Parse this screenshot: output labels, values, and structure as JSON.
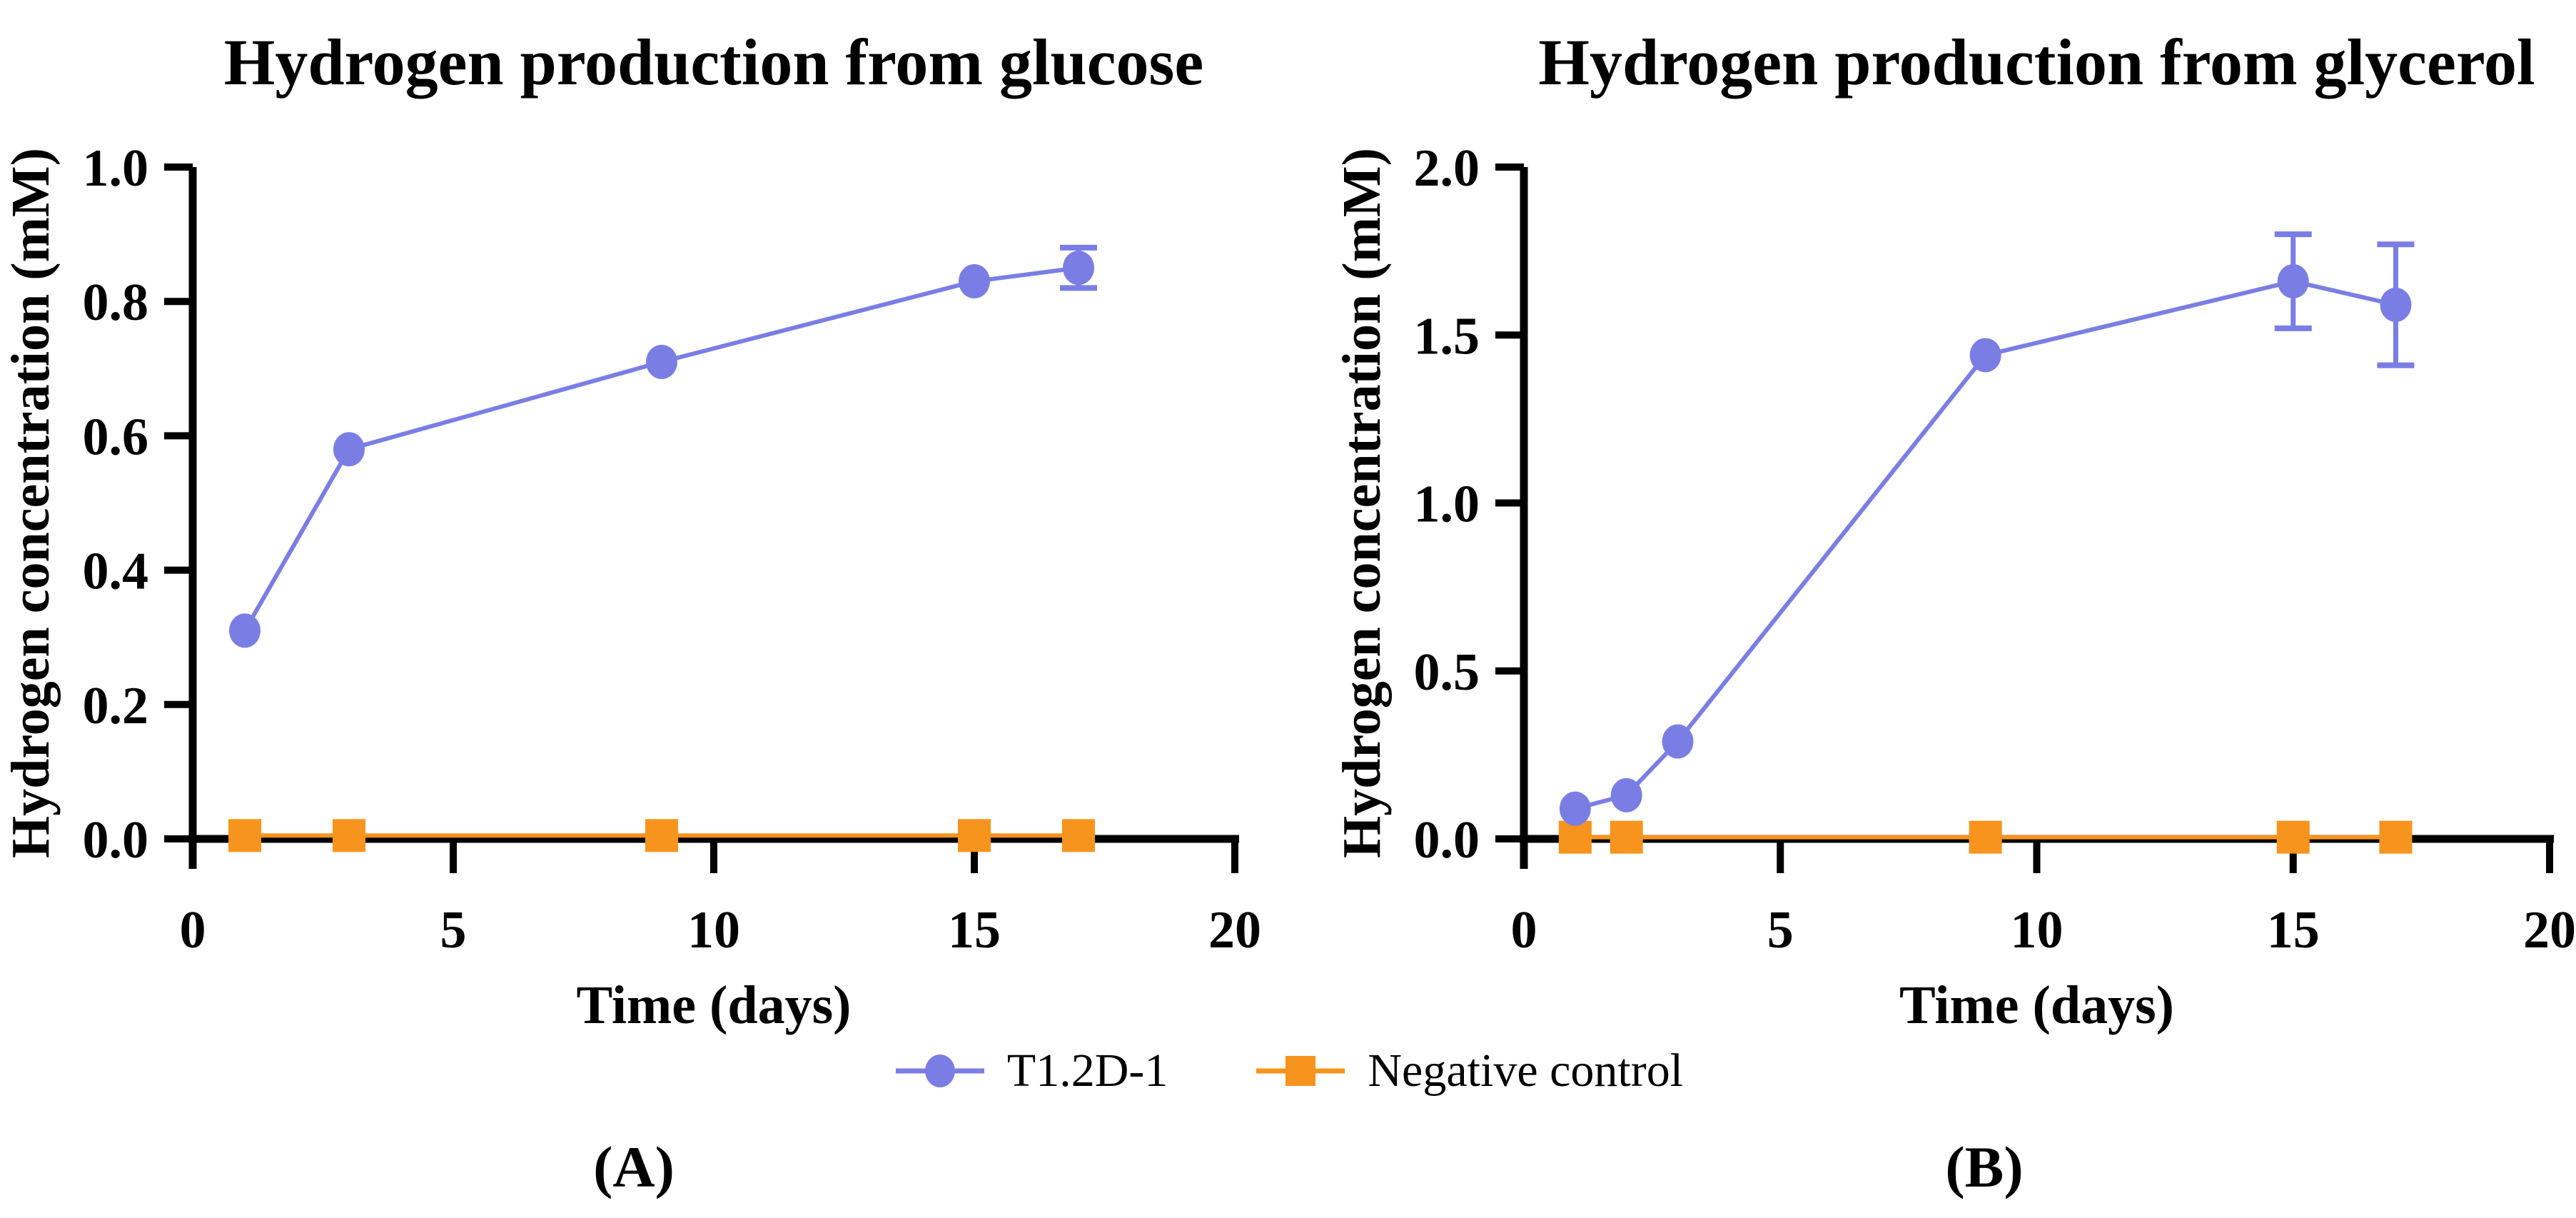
{
  "figure": {
    "background": "#ffffff",
    "axis_color": "#000000",
    "panel_labels": [
      "(A)",
      "(B)"
    ],
    "legend": [
      {
        "label": "T1.2D-1",
        "marker": "circle",
        "color": "#7a7ee4"
      },
      {
        "label": "Negative control",
        "marker": "square",
        "color": "#f7941d"
      }
    ]
  },
  "chart_data": [
    {
      "type": "line",
      "panel": "A",
      "title": "Hydrogen production from glucose",
      "xlabel": "Time (days)",
      "ylabel": "Hydrogen concentration (mM)",
      "xlim": [
        0,
        20
      ],
      "ylim": [
        0,
        1.0
      ],
      "xticks": [
        "0",
        "5",
        "10",
        "15",
        "20"
      ],
      "yticks": [
        "0.0",
        "0.2",
        "0.4",
        "0.6",
        "0.8",
        "1.0"
      ],
      "grid": false,
      "legend_position": "bottom-center",
      "series": [
        {
          "name": "T1.2D-1",
          "marker": "circle",
          "color": "#7a7ee4",
          "x": [
            1,
            3,
            9,
            15,
            17
          ],
          "y": [
            0.31,
            0.58,
            0.71,
            0.83,
            0.85
          ],
          "yerr": [
            0,
            0,
            0,
            0,
            0.03
          ]
        },
        {
          "name": "Negative control",
          "marker": "square",
          "color": "#f7941d",
          "x": [
            1,
            3,
            9,
            15,
            17
          ],
          "y": [
            0.005,
            0.005,
            0.005,
            0.005,
            0.005
          ],
          "yerr": [
            0,
            0,
            0,
            0,
            0
          ]
        }
      ]
    },
    {
      "type": "line",
      "panel": "B",
      "title": "Hydrogen production from glycerol",
      "xlabel": "Time (days)",
      "ylabel": "Hydrogen concentration (mM)",
      "xlim": [
        0,
        20
      ],
      "ylim": [
        0,
        2.0
      ],
      "xticks": [
        "0",
        "5",
        "10",
        "15",
        "20"
      ],
      "yticks": [
        "0.0",
        "0.5",
        "1.0",
        "1.5",
        "2.0"
      ],
      "grid": false,
      "legend_position": "bottom-center",
      "series": [
        {
          "name": "T1.2D-1",
          "marker": "circle",
          "color": "#7a7ee4",
          "x": [
            1,
            2,
            3,
            9,
            15,
            17
          ],
          "y": [
            0.09,
            0.13,
            0.29,
            1.44,
            1.66,
            1.59
          ],
          "yerr": [
            0,
            0,
            0,
            0,
            0.14,
            0.18
          ]
        },
        {
          "name": "Negative control",
          "marker": "square",
          "color": "#f7941d",
          "x": [
            1,
            2,
            9,
            15,
            17
          ],
          "y": [
            0.005,
            0.005,
            0.005,
            0.005,
            0.005
          ],
          "yerr": [
            0,
            0,
            0,
            0,
            0
          ]
        }
      ]
    }
  ]
}
